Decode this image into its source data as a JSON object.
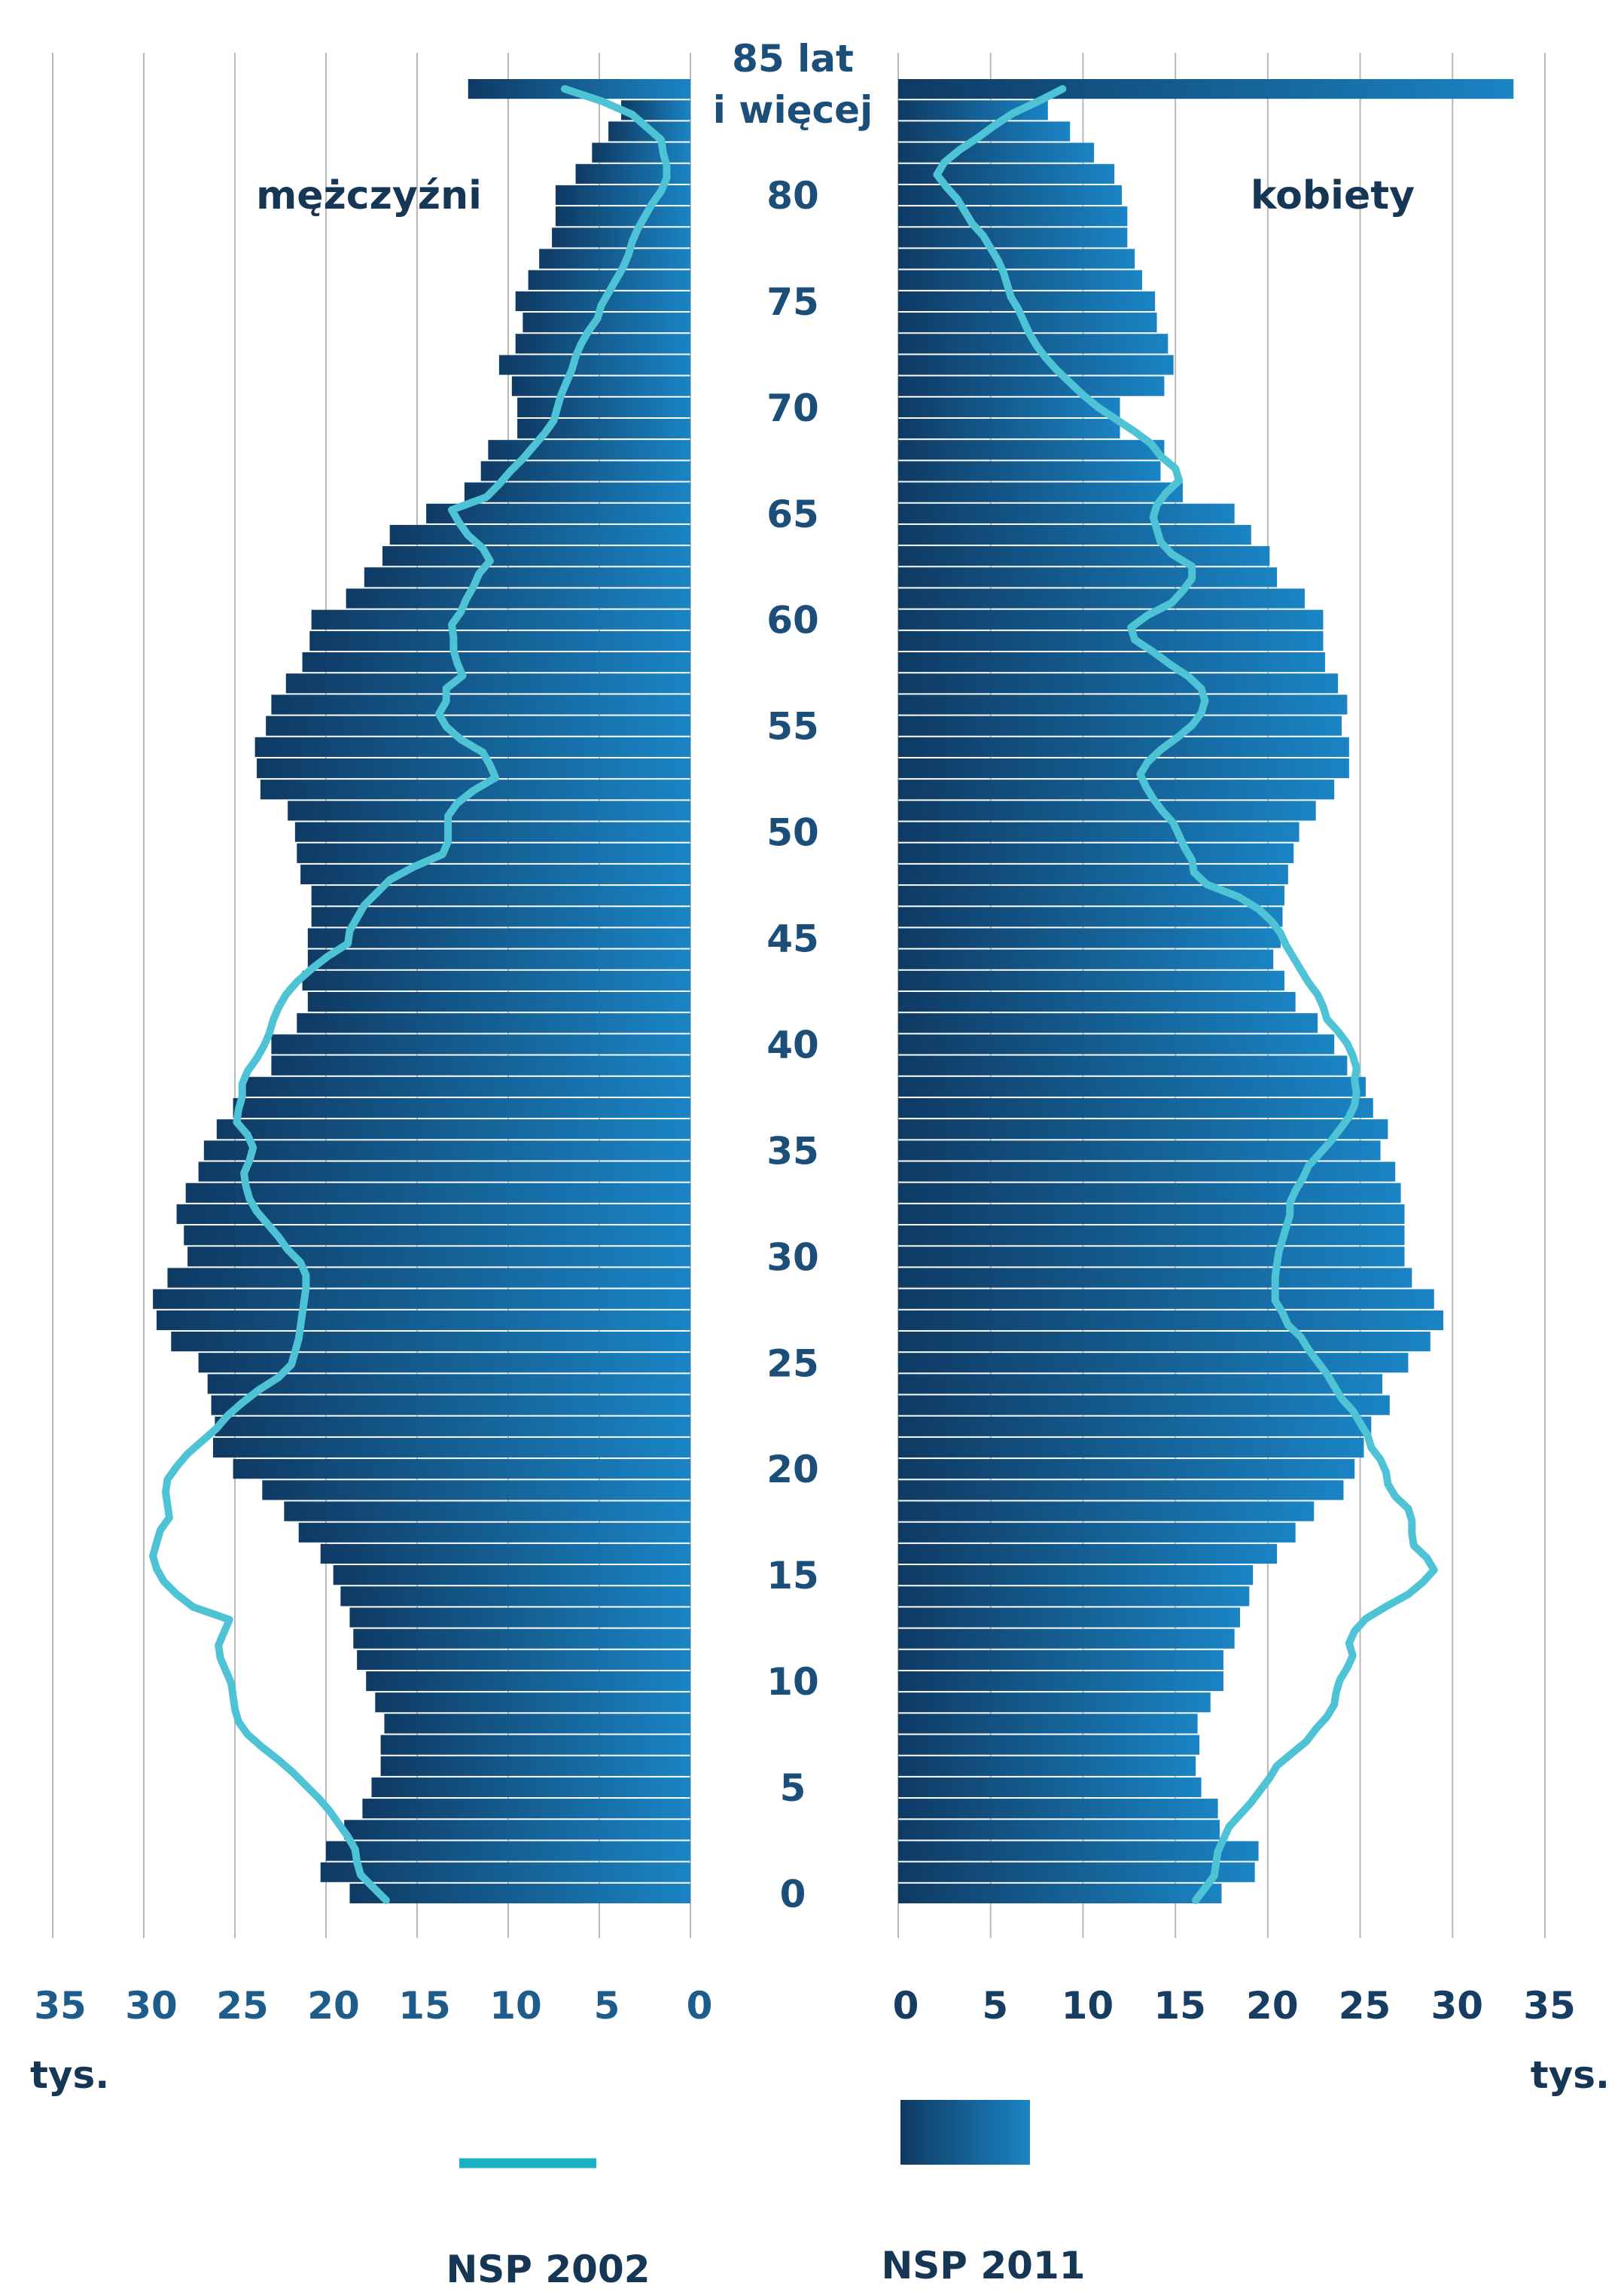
{
  "chart_data": {
    "type": "population-pyramid",
    "side_labels": {
      "left": "mężczyźni",
      "right": "kobiety"
    },
    "age_labels": [
      {
        "age": 0,
        "text": "0"
      },
      {
        "age": 5,
        "text": "5"
      },
      {
        "age": 10,
        "text": "10"
      },
      {
        "age": 15,
        "text": "15"
      },
      {
        "age": 20,
        "text": "20"
      },
      {
        "age": 25,
        "text": "25"
      },
      {
        "age": 30,
        "text": "30"
      },
      {
        "age": 35,
        "text": "35"
      },
      {
        "age": 40,
        "text": "40"
      },
      {
        "age": 45,
        "text": "45"
      },
      {
        "age": 50,
        "text": "50"
      },
      {
        "age": 55,
        "text": "55"
      },
      {
        "age": 60,
        "text": "60"
      },
      {
        "age": 65,
        "text": "65"
      },
      {
        "age": 70,
        "text": "70"
      },
      {
        "age": 75,
        "text": "75"
      },
      {
        "age": 80,
        "text": "80"
      }
    ],
    "top_age_label": [
      "85 lat",
      "i więcej"
    ],
    "x_ticks": [
      0,
      5,
      10,
      15,
      20,
      25,
      30,
      35
    ],
    "x_unit": "tys.",
    "xlim": [
      0,
      35
    ],
    "grid": true,
    "colors": {
      "bar_dark": "#0f3a63",
      "bar_light": "#1a84c4",
      "line": "#4fc3d6",
      "grid": "#b9b9b9",
      "tick_left": "#1e5c8c",
      "tick_right": "#173d63",
      "age_label": "#1b4f7a",
      "legend_line": "#1ab0c4"
    },
    "series": [
      {
        "name": "NSP 2011",
        "sex": "male",
        "kind": "bars",
        "values": [
          18.7,
          20.3,
          20.0,
          19.0,
          18.0,
          17.5,
          17.0,
          17.0,
          16.8,
          17.3,
          17.8,
          18.3,
          18.5,
          18.7,
          19.2,
          19.6,
          20.3,
          21.5,
          22.3,
          23.5,
          25.1,
          26.2,
          26.1,
          26.3,
          26.5,
          27.0,
          28.5,
          29.3,
          29.5,
          28.7,
          27.6,
          27.8,
          28.2,
          27.7,
          27.0,
          26.7,
          26.0,
          25.1,
          24.4,
          23.0,
          23.0,
          21.6,
          21.0,
          21.3,
          21.0,
          21.0,
          20.8,
          20.8,
          21.4,
          21.6,
          21.7,
          22.1,
          23.6,
          23.8,
          23.9,
          23.3,
          23.0,
          22.2,
          21.3,
          20.9,
          20.8,
          18.9,
          17.9,
          16.9,
          16.5,
          14.5,
          12.4,
          11.5,
          11.1,
          9.5,
          9.5,
          9.8,
          10.5,
          9.6,
          9.2,
          9.6,
          8.9,
          8.3,
          7.6,
          7.4,
          7.4,
          6.3,
          5.4,
          4.5,
          3.8,
          12.2
        ]
      },
      {
        "name": "NSP 2011",
        "sex": "female",
        "kind": "bars",
        "values": [
          17.5,
          19.3,
          19.5,
          17.4,
          17.3,
          16.4,
          16.1,
          16.3,
          16.2,
          16.9,
          17.6,
          17.6,
          18.2,
          18.5,
          19.0,
          19.2,
          20.5,
          21.5,
          22.5,
          24.1,
          24.7,
          25.2,
          25.6,
          26.6,
          26.2,
          27.6,
          28.8,
          29.5,
          29.0,
          27.8,
          27.4,
          27.4,
          27.4,
          27.2,
          26.9,
          26.1,
          26.5,
          25.7,
          25.3,
          24.3,
          23.6,
          22.7,
          21.5,
          20.9,
          20.3,
          20.7,
          20.8,
          20.9,
          21.1,
          21.4,
          21.7,
          22.6,
          23.6,
          24.4,
          24.4,
          24.0,
          24.3,
          23.8,
          23.1,
          23.0,
          23.0,
          22.0,
          20.5,
          20.1,
          19.1,
          18.2,
          15.4,
          14.2,
          14.4,
          12.0,
          12.0,
          14.4,
          14.9,
          14.6,
          14.0,
          13.9,
          13.2,
          12.8,
          12.4,
          12.4,
          12.1,
          11.7,
          10.6,
          9.3,
          8.1,
          33.3
        ]
      },
      {
        "name": "NSP 2002",
        "sex": "male",
        "kind": "line",
        "values": [
          16.7,
          17.4,
          18.1,
          18.3,
          18.4,
          18.8,
          19.3,
          19.8,
          20.4,
          21.1,
          21.8,
          22.6,
          23.5,
          24.3,
          24.8,
          25.0,
          25.1,
          25.2,
          25.5,
          25.8,
          25.9,
          25.6,
          25.3,
          27.3,
          28.2,
          28.9,
          29.3,
          29.5,
          29.3,
          29.1,
          28.6,
          28.7,
          28.8,
          28.7,
          28.2,
          27.6,
          26.8,
          26.0,
          25.4,
          24.6,
          23.7,
          22.6,
          21.9,
          21.7,
          21.5,
          21.4,
          21.3,
          21.2,
          21.1,
          21.1,
          21.4,
          22.1,
          22.6,
          23.2,
          23.8,
          24.2,
          24.4,
          24.5,
          24.2,
          24.0,
          24.3,
          24.9,
          24.8,
          24.6,
          24.6,
          24.3,
          23.8,
          23.4,
          23.1,
          22.9,
          22.6,
          22.2,
          21.6,
          20.8,
          19.9,
          18.8,
          18.7,
          18.3,
          17.9,
          17.2,
          16.5,
          15.2,
          13.6,
          13.3,
          13.3,
          13.3,
          12.8,
          11.9,
          10.7,
          11.0,
          11.4,
          12.6,
          13.4,
          13.8,
          13.4,
          13.4,
          12.5,
          12.8,
          13.0,
          13.0,
          13.1,
          12.6,
          12.3,
          11.9,
          11.6,
          11.0,
          11.4,
          12.2,
          12.7,
          13.1,
          11.2,
          10.5,
          9.9,
          9.2,
          8.6,
          8.0,
          7.5,
          7.3,
          7.1,
          6.8,
          6.5,
          6.3,
          6.0,
          5.6,
          5.1,
          4.9,
          4.5,
          4.1,
          3.7,
          3.4,
          3.2,
          2.9,
          2.5,
          2.1,
          1.6,
          1.3,
          1.3,
          1.5,
          1.6,
          2.4,
          3.2,
          4.8,
          6.9
        ]
      },
      {
        "name": "NSP 2002",
        "sex": "female",
        "kind": "line",
        "values": [
          16.1,
          16.6,
          17.1,
          17.2,
          17.3,
          17.6,
          17.9,
          18.5,
          19.1,
          19.6,
          20.1,
          20.5,
          21.3,
          22.1,
          22.6,
          23.2,
          23.6,
          23.7,
          23.9,
          24.3,
          24.6,
          24.4,
          24.7,
          25.3,
          26.4,
          27.6,
          28.4,
          29.0,
          28.6,
          27.9,
          27.8,
          27.8,
          27.6,
          26.9,
          26.5,
          26.4,
          26.1,
          25.6,
          25.4,
          25.0,
          24.6,
          24.0,
          23.6,
          23.2,
          22.7,
          22.2,
          21.8,
          21.1,
          20.8,
          20.4,
          20.4,
          20.4,
          20.5,
          20.6,
          20.8,
          21.0,
          21.2,
          21.2,
          21.5,
          21.9,
          22.2,
          22.8,
          23.4,
          23.9,
          24.4,
          24.7,
          24.8,
          24.7,
          24.8,
          24.6,
          24.3,
          23.8,
          23.2,
          23.0,
          22.7,
          22.2,
          21.8,
          21.4,
          21.0,
          20.7,
          20.2,
          19.5,
          18.4,
          16.7,
          16.0,
          15.9,
          15.5,
          15.2,
          14.9,
          14.3,
          13.8,
          13.4,
          13.1,
          13.5,
          14.2,
          15.1,
          15.9,
          16.4,
          16.6,
          16.4,
          15.7,
          14.7,
          13.8,
          12.8,
          12.6,
          13.5,
          14.8,
          15.4,
          15.9,
          15.9,
          14.8,
          14.2,
          14.0,
          13.8,
          14.0,
          14.5,
          15.2,
          15.0,
          14.2,
          13.7,
          12.8,
          11.8,
          10.8,
          10.0,
          9.3,
          8.6,
          8.0,
          7.5,
          7.1,
          6.8,
          6.5,
          6.1,
          5.9,
          5.7,
          5.4,
          5.0,
          4.6,
          4.0,
          3.6,
          3.2,
          2.6,
          2.1,
          2.5,
          3.3,
          4.3,
          5.2,
          6.2,
          7.6,
          8.9
        ]
      }
    ],
    "legend": [
      {
        "label": "NSP 2002",
        "kind": "line"
      },
      {
        "label": "NSP 2011",
        "kind": "bars"
      }
    ]
  }
}
